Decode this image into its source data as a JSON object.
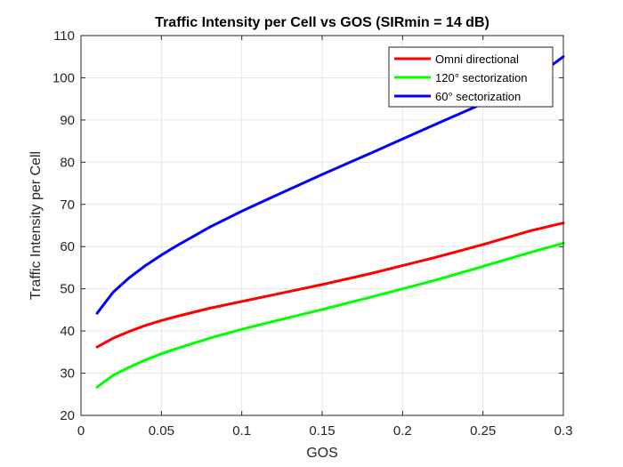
{
  "chart_data": {
    "type": "line",
    "title": "Traffic Intensity per Cell vs GOS (SIRmin = 14 dB)",
    "xlabel": "GOS",
    "ylabel": "Traffic Intensity per Cell",
    "xlim": [
      0,
      0.3
    ],
    "ylim": [
      20,
      110
    ],
    "xticks": [
      0,
      0.05,
      0.1,
      0.15,
      0.2,
      0.25,
      0.3
    ],
    "xtick_labels": [
      "0",
      "0.05",
      "0.1",
      "0.15",
      "0.2",
      "0.25",
      "0.3"
    ],
    "yticks": [
      20,
      30,
      40,
      50,
      60,
      70,
      80,
      90,
      100,
      110
    ],
    "ytick_labels": [
      "20",
      "30",
      "40",
      "50",
      "60",
      "70",
      "80",
      "90",
      "100",
      "110"
    ],
    "grid": true,
    "legend_position": "top-right",
    "x": [
      0.01,
      0.02,
      0.03,
      0.04,
      0.05,
      0.06,
      0.08,
      0.1,
      0.12,
      0.15,
      0.18,
      0.2,
      0.22,
      0.25,
      0.28,
      0.3
    ],
    "series": [
      {
        "name": "Omni directional",
        "color": "#ff0000",
        "values": [
          36.2,
          38.3,
          39.9,
          41.3,
          42.5,
          43.5,
          45.4,
          47.0,
          48.6,
          51.0,
          53.6,
          55.5,
          57.4,
          60.5,
          63.8,
          65.6
        ]
      },
      {
        "name": "120° sectorization",
        "color": "#00ff00",
        "values": [
          26.7,
          29.5,
          31.4,
          33.1,
          34.6,
          35.9,
          38.3,
          40.4,
          42.3,
          45.1,
          48.0,
          50.0,
          52.0,
          55.3,
          58.7,
          60.8
        ]
      },
      {
        "name": "60° sectorization",
        "color": "#0000ff",
        "values": [
          44.2,
          49.2,
          52.6,
          55.5,
          58.0,
          60.3,
          64.6,
          68.4,
          71.9,
          77.1,
          82.1,
          85.5,
          88.9,
          93.9,
          99.4,
          105.0
        ]
      }
    ]
  }
}
